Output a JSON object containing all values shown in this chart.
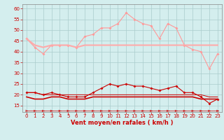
{
  "x": [
    0,
    1,
    2,
    3,
    4,
    5,
    6,
    7,
    8,
    9,
    10,
    11,
    12,
    13,
    14,
    15,
    16,
    17,
    18,
    19,
    20,
    21,
    22,
    23
  ],
  "series": {
    "rafales_high": [
      46,
      42,
      39,
      43,
      43,
      43,
      42,
      47,
      48,
      51,
      51,
      53,
      58,
      55,
      53,
      52,
      46,
      53,
      51,
      43,
      41,
      40,
      32,
      39
    ],
    "moyen_high": [
      46,
      43,
      42,
      43,
      43,
      43,
      42,
      43,
      43,
      43,
      43,
      43,
      43,
      43,
      43,
      43,
      43,
      43,
      43,
      43,
      43,
      43,
      43,
      43
    ],
    "vent_mid": [
      21,
      21,
      20,
      21,
      20,
      19,
      19,
      19,
      21,
      23,
      25,
      24,
      25,
      24,
      24,
      23,
      22,
      23,
      24,
      21,
      21,
      19,
      16,
      18
    ],
    "moyen_low": [
      19,
      18,
      18,
      19,
      19,
      18,
      18,
      18,
      19,
      19,
      19,
      19,
      19,
      19,
      19,
      19,
      19,
      19,
      19,
      19,
      19,
      18,
      18,
      18
    ],
    "rafales_low": [
      21,
      21,
      20,
      20,
      20,
      20,
      20,
      20,
      20,
      20,
      20,
      20,
      20,
      20,
      20,
      20,
      20,
      20,
      20,
      20,
      20,
      20,
      19,
      19
    ],
    "arrow_line": [
      12.5,
      12.5,
      12.5,
      12.5,
      12.5,
      12.5,
      12.5,
      12.5,
      12.5,
      12.5,
      12.5,
      12.5,
      12.5,
      12.5,
      12.5,
      12.5,
      12.5,
      12.5,
      12.5,
      12.5,
      12.5,
      12.5,
      12.5,
      12.5
    ]
  },
  "colors": {
    "rafales_high": "#ff9999",
    "moyen_high": "#ffaaaa",
    "vent_mid": "#cc0000",
    "moyen_low": "#cc0000",
    "rafales_low": "#cc0000",
    "arrow_line": "#cc0000"
  },
  "bg_color": "#d4eeee",
  "grid_color": "#aacccc",
  "xlabel": "Vent moyen/en rafales ( km/h )",
  "xlim": [
    -0.5,
    23.5
  ],
  "ylim": [
    12,
    62
  ],
  "yticks": [
    15,
    20,
    25,
    30,
    35,
    40,
    45,
    50,
    55,
    60
  ],
  "xticks": [
    0,
    1,
    2,
    3,
    4,
    5,
    6,
    7,
    8,
    9,
    10,
    11,
    12,
    13,
    14,
    15,
    16,
    17,
    18,
    19,
    20,
    21,
    22,
    23
  ]
}
